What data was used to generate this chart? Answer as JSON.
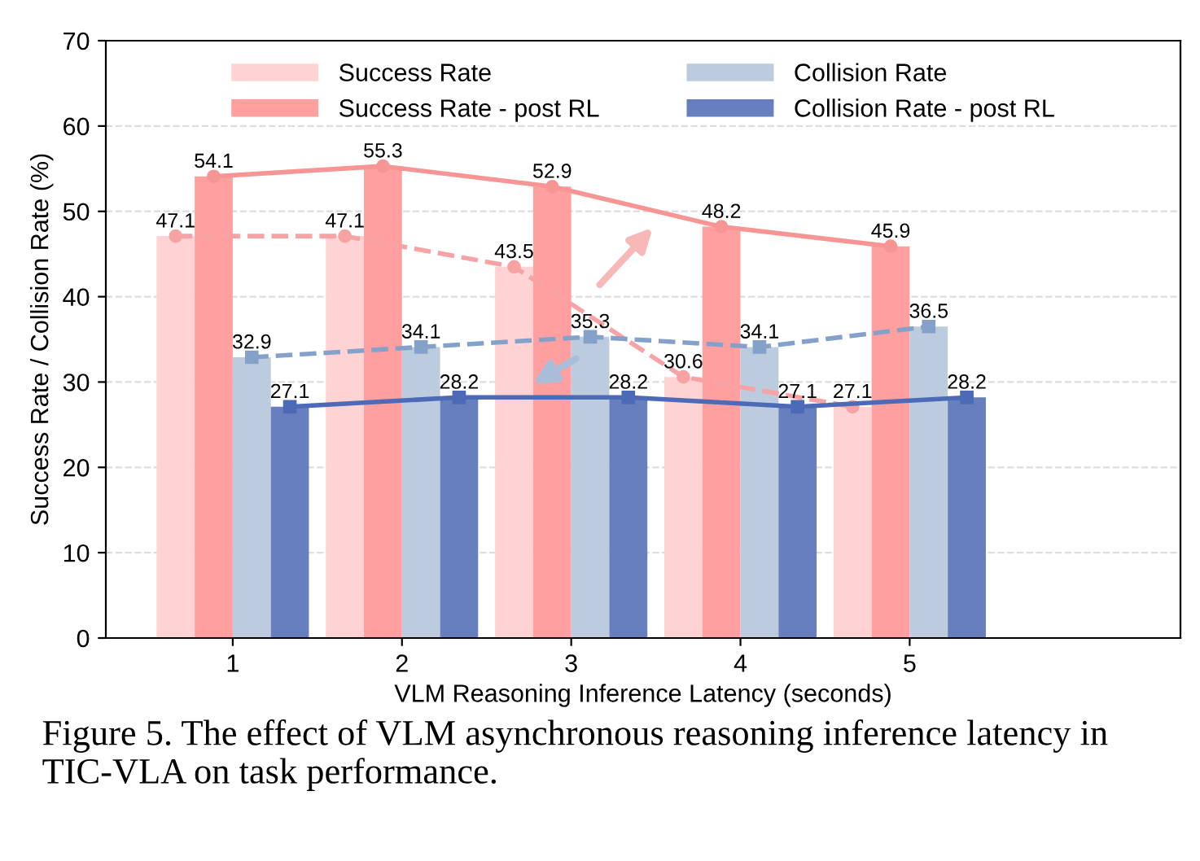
{
  "chart_data": {
    "type": "bar",
    "xlabel": "VLM Reasoning Inference Latency (seconds)",
    "ylabel": "Success Rate / Collision Rate (%)",
    "categories": [
      "1",
      "2",
      "3",
      "4",
      "5"
    ],
    "series": [
      {
        "name": "Success Rate",
        "color": "#ffd3d3",
        "values": [
          47.1,
          47.1,
          43.5,
          30.6,
          27.1
        ],
        "value_labels": [
          "47.1",
          "47.1",
          "43.5",
          "30.6",
          "27.1"
        ]
      },
      {
        "name": "Success Rate - post RL",
        "color": "#ff9f9f",
        "values": [
          54.1,
          55.3,
          52.9,
          48.2,
          45.9
        ],
        "value_labels": [
          "54.1",
          "55.3",
          "52.9",
          "48.2",
          "45.9"
        ]
      },
      {
        "name": "Collision Rate",
        "color": "#bccbdd",
        "values": [
          32.9,
          34.1,
          35.3,
          34.1,
          36.5
        ],
        "value_labels": [
          "32.9",
          "34.1",
          "35.3",
          "34.1",
          "36.5"
        ]
      },
      {
        "name": "Collision Rate - post RL",
        "color": "#687fbf",
        "values": [
          27.1,
          28.2,
          28.2,
          27.1,
          28.2
        ],
        "value_labels": [
          "27.1",
          "28.2",
          "28.2",
          "27.1",
          "28.2"
        ]
      },
      {
        "type": "line",
        "color": "#f7a3a3",
        "values": [
          47.1,
          47.1,
          43.5,
          30.6,
          27.1
        ],
        "line_style": "dashed",
        "marker": "circle"
      },
      {
        "type": "line",
        "color": "#f79595",
        "values": [
          54.1,
          55.3,
          52.9,
          48.2,
          45.9
        ],
        "line_style": "solid",
        "marker": "circle"
      },
      {
        "type": "line",
        "color": "#84a2c9",
        "values": [
          32.9,
          34.1,
          35.3,
          34.1,
          36.5
        ],
        "line_style": "dashed",
        "marker": "square"
      },
      {
        "type": "line",
        "color": "#4d6ab7",
        "values": [
          27.1,
          28.2,
          28.2,
          27.1,
          28.2
        ],
        "line_style": "solid",
        "marker": "square"
      }
    ],
    "ylim": [
      0,
      70
    ],
    "yticks": [
      0,
      10,
      20,
      30,
      40,
      50,
      60,
      70
    ],
    "grid": "y",
    "legend": "top",
    "annotations": [
      "Figure 5. The effect of VLM asynchronous reasoning inference latency in TIC-VLA on task performance."
    ]
  }
}
